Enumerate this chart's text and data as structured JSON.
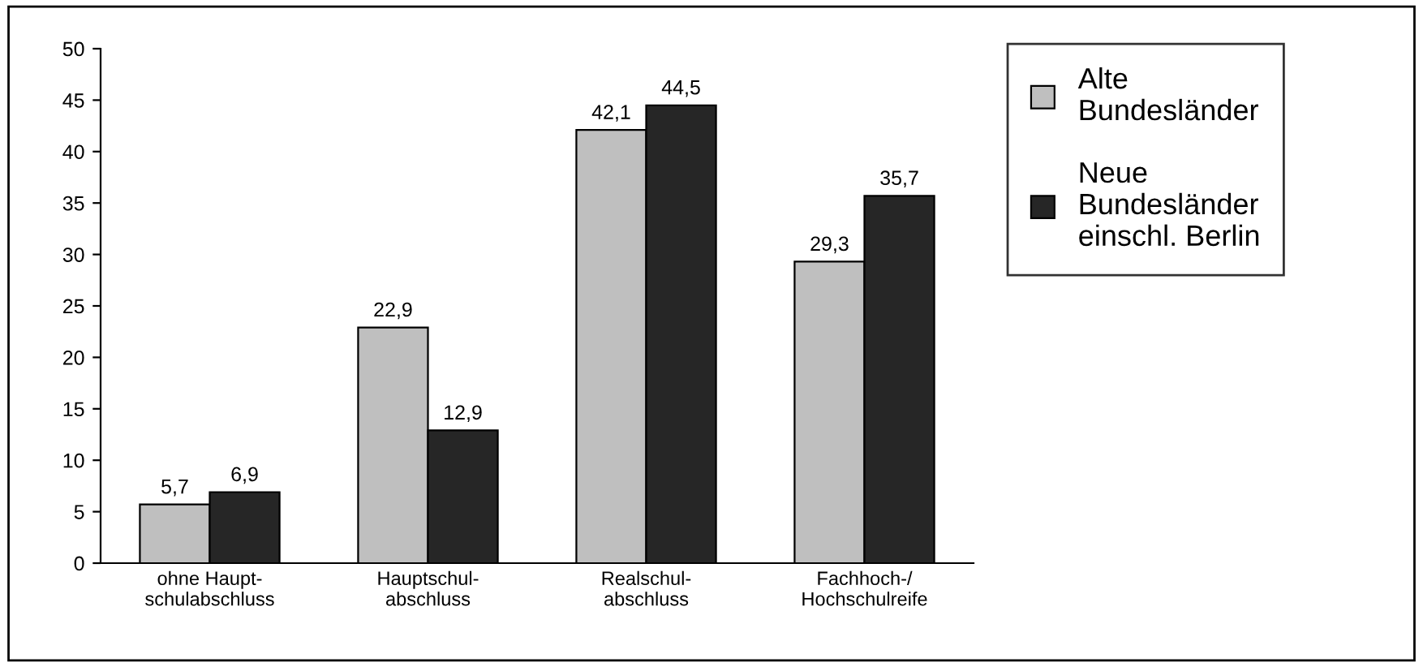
{
  "chart_data": {
    "type": "bar",
    "categories": [
      "ohne Haupt-\nschulabschluss",
      "Hauptschul-\nabschluss",
      "Realschul-\nabschluss",
      "Fachhoch-/\nHochschulreife"
    ],
    "series": [
      {
        "name": "Alte\nBundesländer",
        "color": "#bfbfbf",
        "values": [
          5.7,
          22.9,
          42.1,
          29.3
        ],
        "value_labels": [
          "5,7",
          "22,9",
          "42,1",
          "29,3"
        ]
      },
      {
        "name": "Neue\nBundesländer\neinschl. Berlin",
        "color": "#262626",
        "values": [
          6.9,
          12.9,
          44.5,
          35.7
        ],
        "value_labels": [
          "6,9",
          "12,9",
          "44,5",
          "35,7"
        ]
      }
    ],
    "ylim": [
      0,
      50
    ],
    "yticks": [
      0,
      5,
      10,
      15,
      20,
      25,
      30,
      35,
      40,
      45,
      50
    ],
    "grid": false,
    "legend": "right"
  }
}
